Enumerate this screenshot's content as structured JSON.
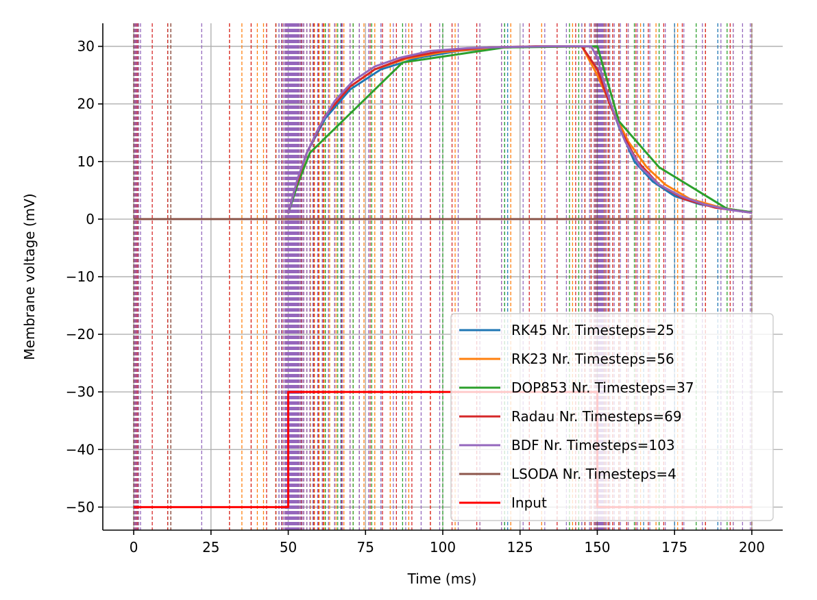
{
  "chart_data": {
    "type": "line",
    "title": "",
    "xlabel": "Time (ms)",
    "ylabel": "Membrane voltage (mV)",
    "xlim": [
      -10,
      210
    ],
    "ylim": [
      -54,
      34
    ],
    "xticks": [
      0,
      25,
      50,
      75,
      100,
      125,
      150,
      175,
      200
    ],
    "yticks": [
      30,
      20,
      10,
      0,
      -10,
      -20,
      -30,
      -40,
      -50
    ],
    "xtick_labels": [
      "0",
      "25",
      "50",
      "75",
      "100",
      "125",
      "150",
      "175",
      "200"
    ],
    "ytick_labels": [
      "30",
      "20",
      "10",
      "0",
      "−10",
      "−20",
      "−30",
      "−40",
      "−50"
    ],
    "grid": true,
    "legend_position": "lower-right",
    "series": [
      {
        "name": "RK45 Nr. Timesteps=25",
        "color": "#1f77b4",
        "x": [
          50,
          52,
          56,
          62,
          70,
          80,
          92,
          105,
          120,
          135,
          145,
          150,
          153,
          157,
          162,
          168,
          175,
          183,
          192,
          200
        ],
        "y": [
          1,
          5,
          11.5,
          17.5,
          22.5,
          26,
          28,
          29.2,
          29.8,
          30,
          30,
          26,
          22,
          16,
          10,
          6.5,
          4,
          2.6,
          1.8,
          1.2
        ],
        "steps": [
          0,
          0.5,
          1.5,
          11,
          12,
          47,
          49,
          50,
          50.6,
          51.2,
          51.8,
          52.5,
          55,
          58,
          62,
          67,
          73,
          80,
          120,
          121,
          145,
          150,
          165,
          175,
          189
        ]
      },
      {
        "name": "RK23 Nr. Timesteps=56",
        "color": "#ff7f0e",
        "x": [
          50,
          52,
          56,
          62,
          70,
          78,
          88,
          100,
          115,
          130,
          145,
          150,
          155,
          160,
          166,
          172,
          180,
          190,
          200
        ],
        "y": [
          1,
          5,
          11.5,
          18,
          23,
          26,
          27.8,
          29,
          29.7,
          30,
          30,
          25,
          19,
          13.5,
          9,
          6,
          3.5,
          2,
          1.1
        ],
        "steps": [
          0,
          1.5,
          12,
          31,
          35,
          38,
          40,
          42,
          46,
          48,
          49,
          50,
          50.3,
          50.7,
          51.1,
          51.5,
          52,
          52.6,
          53.2,
          54,
          55,
          56,
          57.2,
          58.5,
          60,
          61.6,
          63.4,
          65.5,
          68,
          71,
          74.5,
          78,
          83,
          89,
          96,
          104,
          112,
          122,
          132,
          142,
          146,
          148,
          149.3,
          150,
          150.5,
          151.2,
          152.2,
          153.5,
          155,
          157,
          160,
          164,
          169,
          176,
          185,
          194
        ]
      },
      {
        "name": "DOP853 Nr. Timesteps=37",
        "color": "#2ca02c",
        "x": [
          50,
          53,
          57,
          87,
          120,
          150,
          157,
          170,
          192,
          200
        ],
        "y": [
          1,
          6,
          11.5,
          27.2,
          29.8,
          30,
          17,
          9,
          1.8,
          1.2
        ],
        "steps": [
          0,
          1,
          11,
          12,
          46,
          48,
          49.5,
          50,
          50.5,
          51,
          51.5,
          52,
          53,
          54,
          56,
          58,
          62,
          66,
          71,
          77,
          87,
          100,
          120,
          141,
          144,
          146,
          148,
          149.5,
          150,
          151,
          152,
          154,
          157,
          162,
          170,
          182,
          192
        ]
      },
      {
        "name": "Radau Nr. Timesteps=69",
        "color": "#d62728",
        "x": [
          50,
          52,
          56,
          62,
          70,
          78,
          88,
          100,
          115,
          130,
          145,
          150,
          154,
          158,
          163,
          170,
          178,
          188,
          200
        ],
        "y": [
          1,
          5,
          11.5,
          18,
          23,
          26,
          28,
          29.2,
          29.8,
          30,
          30,
          26,
          20,
          15,
          10,
          6,
          3.5,
          2,
          1.1
        ],
        "steps": [
          0,
          0.3,
          0.7,
          1.2,
          6,
          11,
          12,
          31,
          38,
          43,
          46,
          48,
          49,
          49.5,
          50,
          50.2,
          50.4,
          50.6,
          50.8,
          51,
          51.3,
          51.6,
          52,
          52.5,
          53,
          53.6,
          54.3,
          55,
          56,
          57,
          58.3,
          59.7,
          61.3,
          63,
          65,
          67.3,
          70,
          73,
          76.5,
          80.5,
          85,
          90,
          96,
          103,
          111,
          119,
          128,
          137,
          143,
          146,
          148,
          149,
          149.6,
          150,
          150.3,
          150.7,
          151.2,
          151.8,
          152.6,
          153.6,
          155,
          157,
          159.5,
          162.5,
          166.5,
          171.5,
          177.5,
          185,
          193
        ]
      },
      {
        "name": "BDF Nr. Timesteps=103",
        "color": "#9467bd",
        "x": [
          50,
          51,
          53,
          56,
          60,
          65,
          71,
          78,
          86,
          96,
          108,
          122,
          136,
          148,
          150,
          152,
          155,
          159,
          164,
          170,
          177,
          185,
          193,
          200
        ],
        "y": [
          1,
          3,
          7,
          11.5,
          16,
          20.5,
          24,
          26.5,
          28,
          29.2,
          29.7,
          29.9,
          30,
          30,
          28,
          24,
          19,
          13.5,
          9,
          6,
          4,
          2.5,
          1.6,
          1.1
        ],
        "steps": [
          0,
          0.2,
          0.5,
          1,
          1.6,
          2.2,
          22,
          47,
          47.8,
          48.5,
          49,
          49.3,
          49.6,
          49.8,
          50,
          50.1,
          50.2,
          50.3,
          50.4,
          50.5,
          50.6,
          50.7,
          50.8,
          50.9,
          51,
          51.1,
          51.2,
          51.3,
          51.4,
          51.5,
          51.6,
          51.7,
          51.8,
          51.9,
          52,
          52.2,
          52.4,
          52.6,
          52.8,
          53,
          53.3,
          53.6,
          54,
          54.5,
          55,
          56,
          57,
          58,
          59.5,
          61,
          63,
          65,
          67.5,
          70,
          73,
          76,
          80,
          84,
          88,
          93,
          99,
          105,
          112,
          119,
          126,
          133,
          140,
          145,
          147.5,
          149,
          149.5,
          149.8,
          150,
          150.1,
          150.2,
          150.3,
          150.4,
          150.5,
          150.6,
          150.7,
          150.8,
          150.9,
          151,
          151.2,
          151.4,
          151.6,
          151.8,
          152,
          152.5,
          153,
          154,
          155.5,
          157.5,
          160,
          163,
          167,
          172,
          178,
          184,
          190,
          194,
          197,
          199.5
        ]
      },
      {
        "name": "LSODA Nr. Timesteps=4",
        "color": "#8c564b",
        "x": [
          0,
          200
        ],
        "y": [
          0,
          0
        ],
        "steps": [
          0,
          12,
          150,
          200
        ]
      },
      {
        "name": "Input",
        "color": "#ff0000",
        "x": [
          0,
          50,
          50,
          150,
          150,
          200
        ],
        "y": [
          -50,
          -50,
          -30,
          -30,
          -50,
          -50
        ]
      }
    ]
  }
}
